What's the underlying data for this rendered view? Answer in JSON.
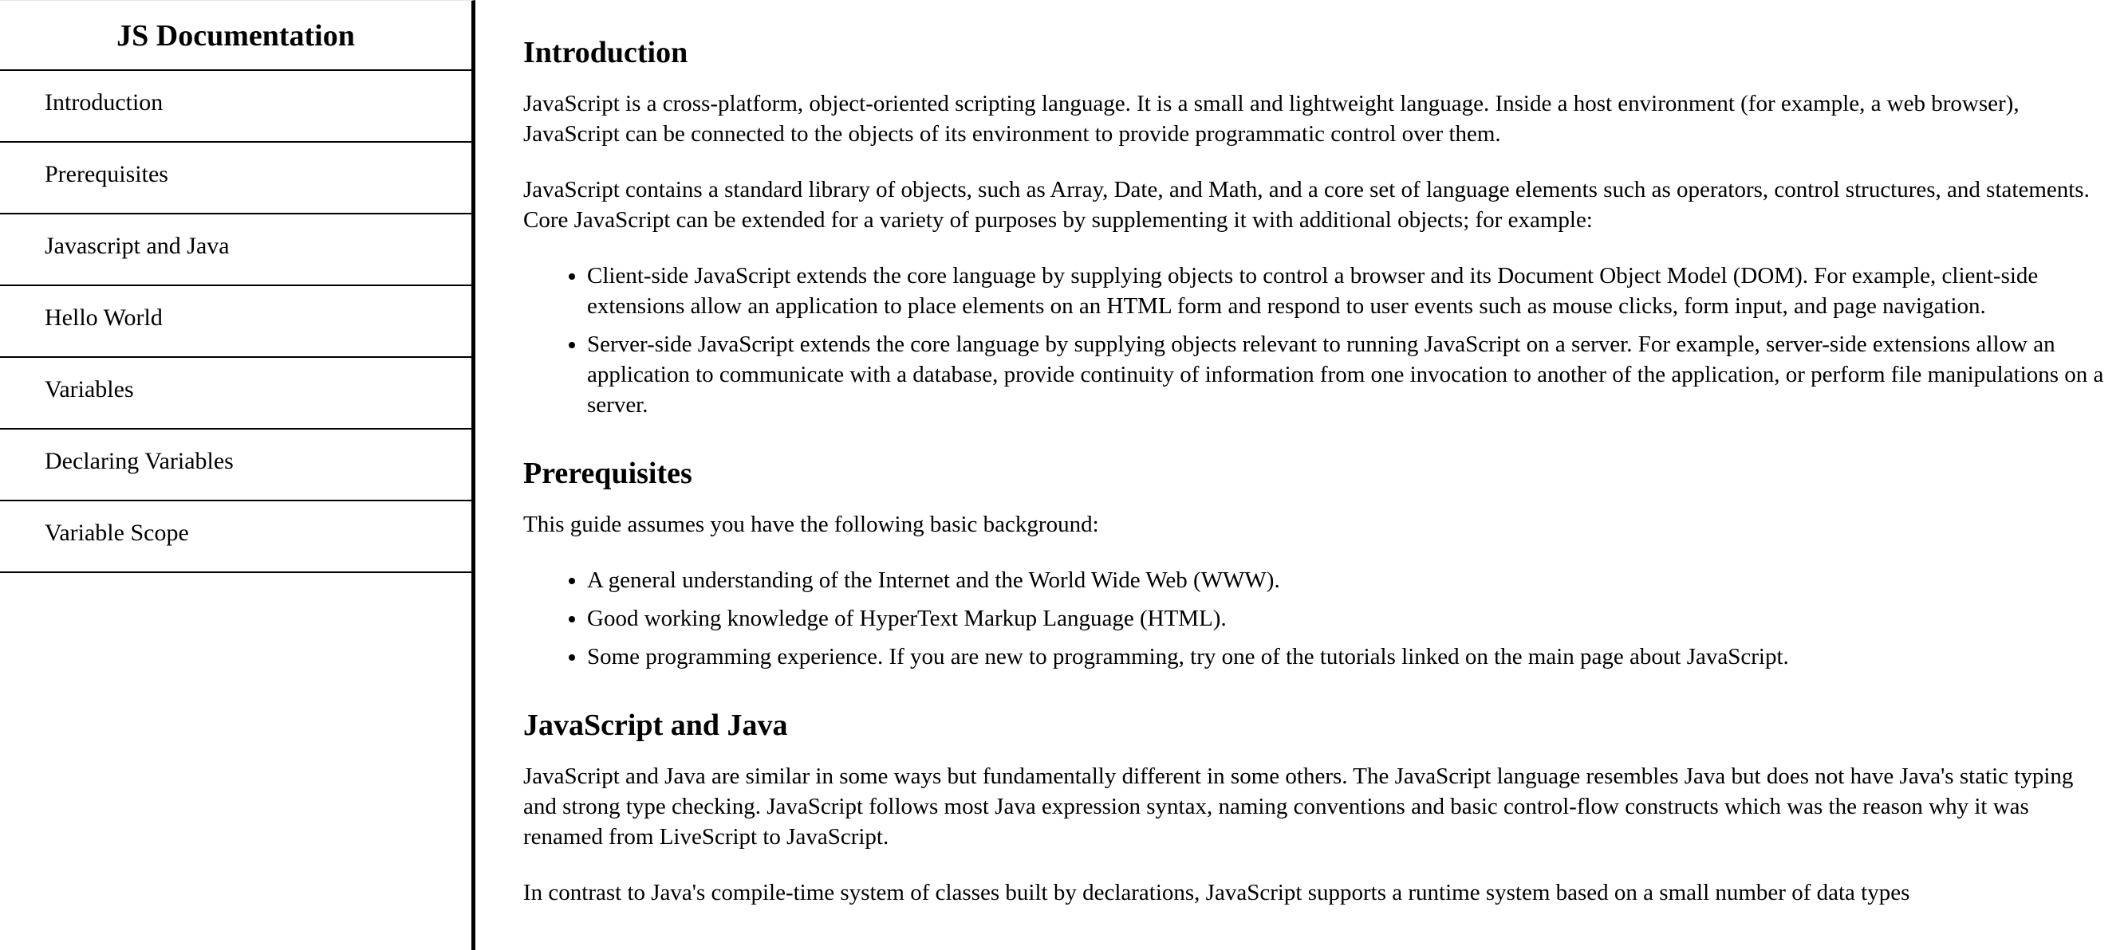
{
  "navbar": {
    "title": "JS Documentation",
    "items": [
      {
        "label": "Introduction"
      },
      {
        "label": "Prerequisites"
      },
      {
        "label": "Javascript and Java"
      },
      {
        "label": "Hello World"
      },
      {
        "label": "Variables"
      },
      {
        "label": "Declaring Variables"
      },
      {
        "label": "Variable Scope"
      }
    ]
  },
  "sections": {
    "introduction": {
      "heading": "Introduction",
      "p1": "JavaScript is a cross-platform, object-oriented scripting language. It is a small and lightweight language. Inside a host environment (for example, a web browser), JavaScript can be connected to the objects of its environment to provide programmatic control over them.",
      "p2": "JavaScript contains a standard library of objects, such as Array, Date, and Math, and a core set of language elements such as operators, control structures, and statements. Core JavaScript can be extended for a variety of purposes by supplementing it with additional objects; for example:",
      "list": [
        "Client-side JavaScript extends the core language by supplying objects to control a browser and its Document Object Model (DOM). For example, client-side extensions allow an application to place elements on an HTML form and respond to user events such as mouse clicks, form input, and page navigation.",
        "Server-side JavaScript extends the core language by supplying objects relevant to running JavaScript on a server. For example, server-side extensions allow an application to communicate with a database, provide continuity of information from one invocation to another of the application, or perform file manipulations on a server."
      ]
    },
    "prerequisites": {
      "heading": "Prerequisites",
      "p1": "This guide assumes you have the following basic background:",
      "list": [
        "A general understanding of the Internet and the World Wide Web (WWW).",
        "Good working knowledge of HyperText Markup Language (HTML).",
        "Some programming experience. If you are new to programming, try one of the tutorials linked on the main page about JavaScript."
      ]
    },
    "javascript_and_java": {
      "heading": "JavaScript and Java",
      "p1": "JavaScript and Java are similar in some ways but fundamentally different in some others. The JavaScript language resembles Java but does not have Java's static typing and strong type checking. JavaScript follows most Java expression syntax, naming conventions and basic control-flow constructs which was the reason why it was renamed from LiveScript to JavaScript.",
      "p2": "In contrast to Java's compile-time system of classes built by declarations, JavaScript supports a runtime system based on a small number of data types"
    }
  }
}
